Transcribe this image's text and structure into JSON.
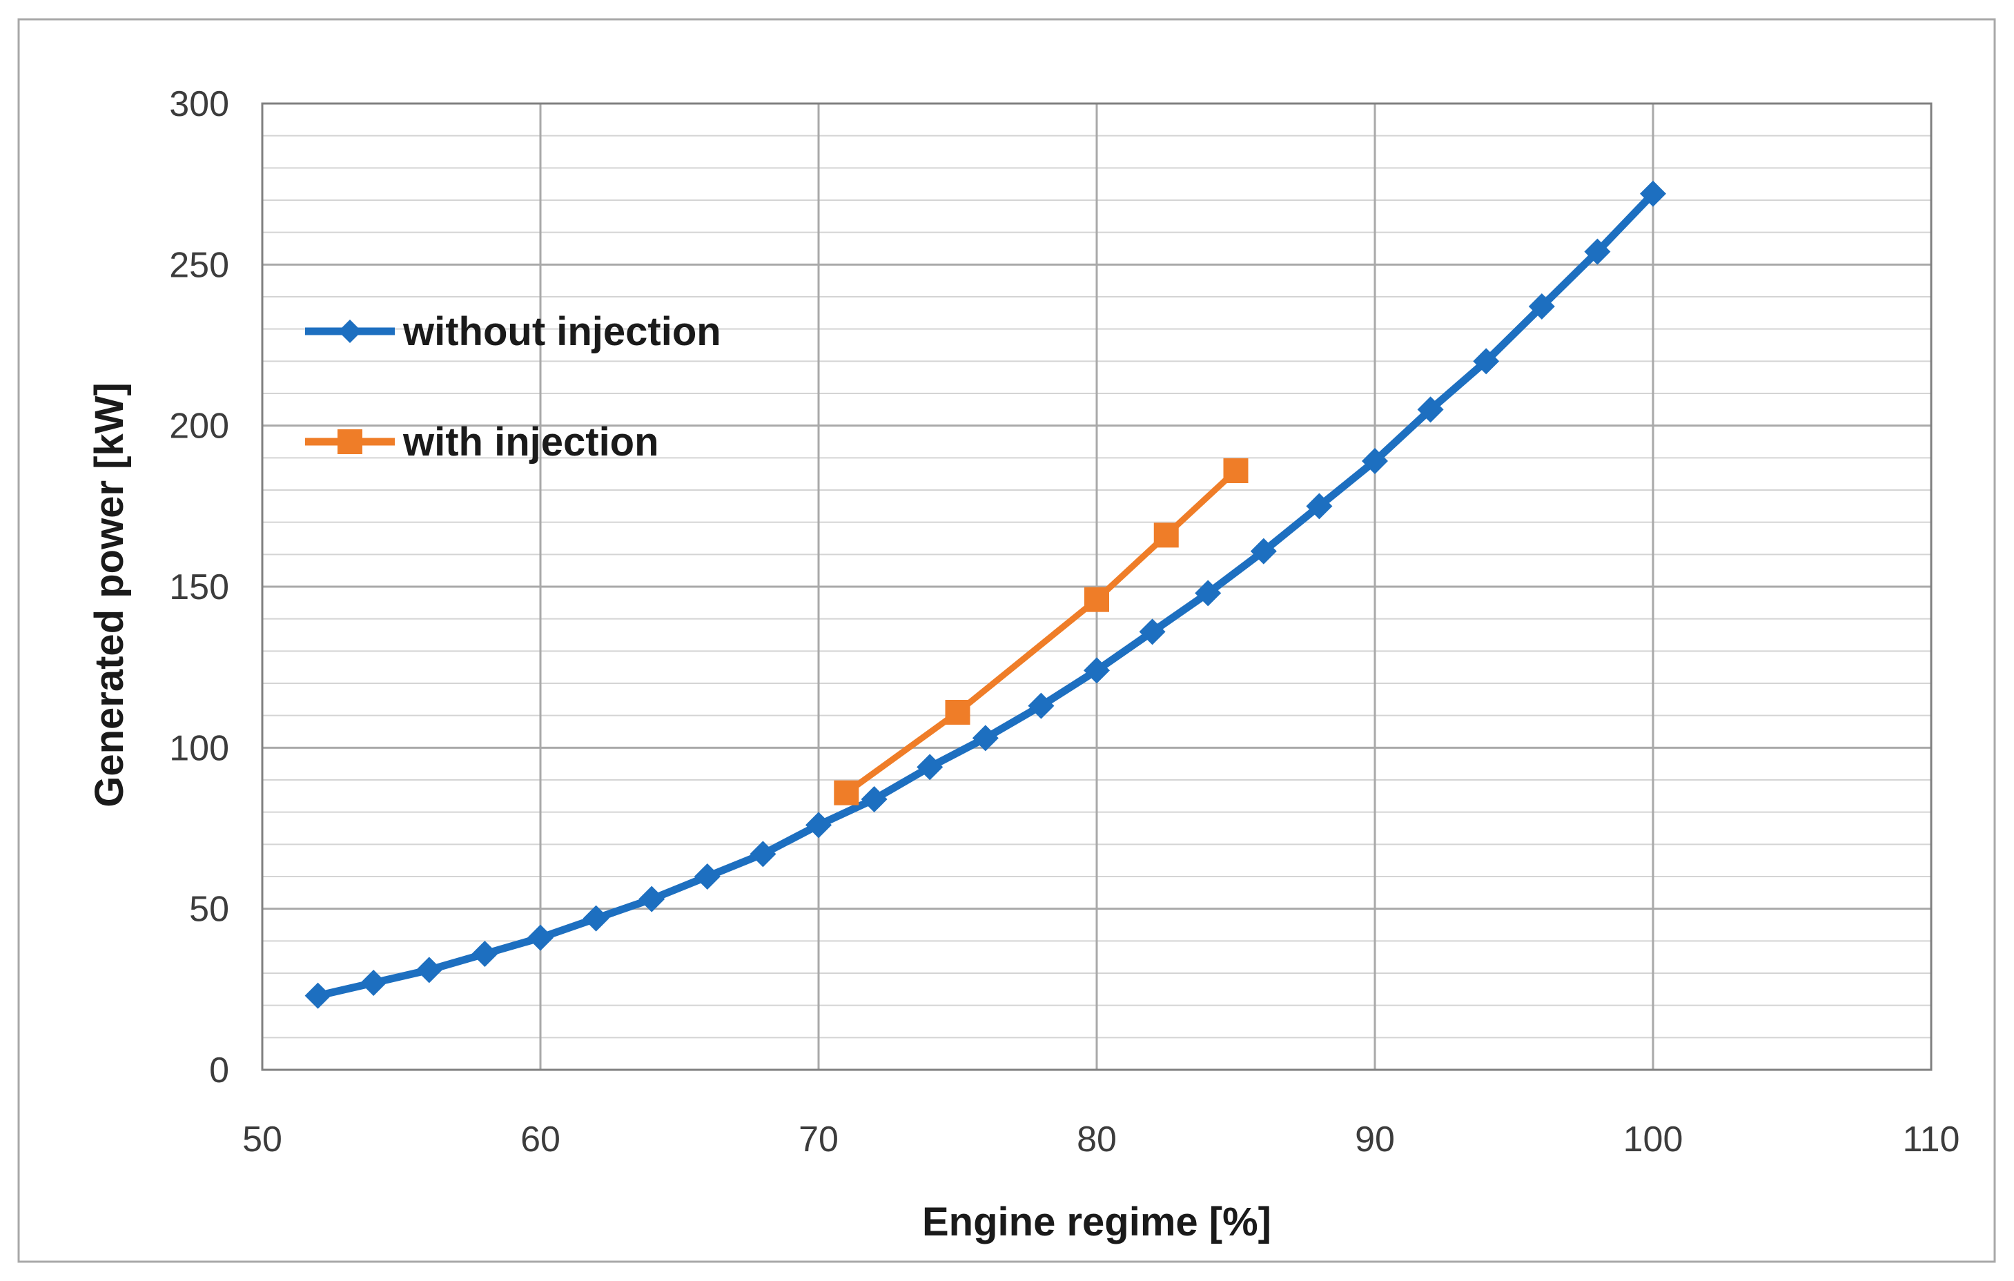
{
  "window": {
    "background": "#ffffff",
    "border_color": "#a8a8a8"
  },
  "chart_data": {
    "type": "line",
    "title": "",
    "xlabel": "Engine regime [%]",
    "ylabel": "Generated power [kW]",
    "xlim": [
      50,
      110
    ],
    "ylim": [
      0,
      300
    ],
    "x_ticks": [
      50,
      60,
      70,
      80,
      90,
      100,
      110
    ],
    "y_ticks": [
      0,
      50,
      100,
      150,
      200,
      250,
      300
    ],
    "y_minor_step": 10,
    "grid": {
      "horizontal_minor": true,
      "horizontal_major": true,
      "vertical_major": true
    },
    "legend_position": "inside-top-left",
    "axis_text_color": "#3c3c3c",
    "title_text_color": "#1a1a1a",
    "gridline_minor_color": "#d4d4d4",
    "gridline_major_color": "#a9a9a9",
    "plot_border_color": "#808080",
    "series": [
      {
        "name": "without injection",
        "color": "#1d6fc0",
        "marker": "diamond",
        "x": [
          52,
          54,
          56,
          58,
          60,
          62,
          64,
          66,
          68,
          70,
          72,
          74,
          76,
          78,
          80,
          82,
          84,
          86,
          88,
          90,
          92,
          94,
          96,
          98,
          100
        ],
        "y": [
          23,
          27,
          31,
          36,
          41,
          47,
          53,
          60,
          67,
          76,
          84,
          94,
          103,
          113,
          124,
          136,
          148,
          161,
          175,
          189,
          205,
          220,
          237,
          254,
          272
        ]
      },
      {
        "name": "with injection",
        "color": "#ef7d28",
        "marker": "square",
        "x": [
          71,
          75,
          80,
          82.5,
          85
        ],
        "y": [
          86,
          111,
          146,
          166,
          186
        ]
      }
    ]
  }
}
